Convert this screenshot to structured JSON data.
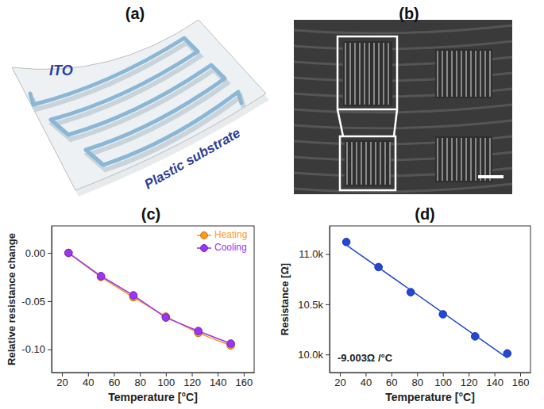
{
  "chart_data": [
    {
      "type": "diagram",
      "title": "(a)",
      "labels": [
        "ITO",
        "Plastic substrate"
      ]
    },
    {
      "type": "image",
      "title": "(b)"
    },
    {
      "type": "line",
      "title": "(c)",
      "xlabel": "Temperature [°C]",
      "ylabel": "Relative resistance change",
      "x": [
        25,
        50,
        75,
        100,
        125,
        150
      ],
      "series": [
        {
          "name": "Heating",
          "color": "#ff9a1f",
          "marker": "circle",
          "line_style": "solid",
          "values": [
            0,
            -0.025,
            -0.046,
            -0.066,
            -0.083,
            -0.096
          ]
        },
        {
          "name": "Cooling",
          "color": "#9b34f5",
          "marker": "circle",
          "line_style": "solid",
          "values": [
            0,
            -0.024,
            -0.044,
            -0.067,
            -0.081,
            -0.094
          ]
        }
      ],
      "xlim": [
        12,
        168
      ],
      "xticks": [
        20,
        40,
        60,
        80,
        100,
        120,
        140,
        160
      ],
      "ylim": [
        -0.124,
        0.028
      ],
      "yticks": [
        {
          "value": -0.1,
          "label": "-0.10"
        },
        -0.05,
        {
          "value": 0,
          "label": "0.00"
        }
      ],
      "grid": false,
      "legend": "upper right"
    },
    {
      "type": "scatter",
      "title": "(d)",
      "xlabel": "Temperature [°C]",
      "ylabel": "Resistance [Ω]",
      "annotation": "-9.003Ω /°C",
      "series": [
        {
          "type": "scatter",
          "color": "#2347d6",
          "marker": "circle",
          "x": [
            25,
            50,
            75,
            100,
            125,
            150
          ],
          "values": [
            11120,
            10870,
            10620,
            10400,
            10180,
            10010
          ],
          "errors": [
            15,
            15,
            12,
            12,
            15,
            18
          ]
        },
        {
          "type": "line",
          "color": "#2347d6",
          "line_style": "solid",
          "x": [
            25,
            150
          ],
          "values": [
            11090,
            9965
          ]
        }
      ],
      "xlim": [
        12,
        168
      ],
      "xticks": [
        20,
        40,
        60,
        80,
        100,
        120,
        140,
        160
      ],
      "ylim": [
        9820,
        11280
      ],
      "yticks": [
        {
          "value": 10000,
          "label": "10.0k"
        },
        {
          "value": 10500,
          "label": "10.5k"
        },
        {
          "value": 11000,
          "label": "11.0k"
        }
      ],
      "grid": false
    }
  ]
}
